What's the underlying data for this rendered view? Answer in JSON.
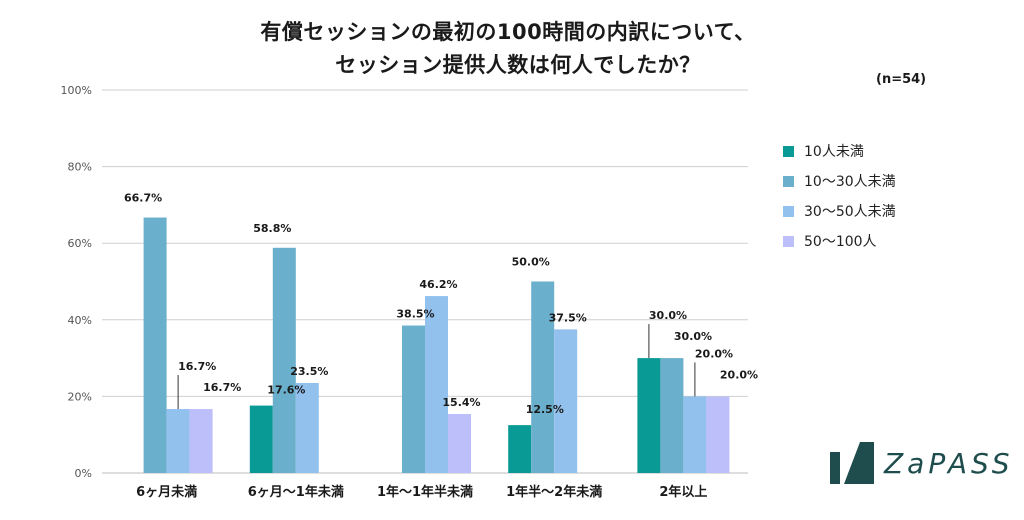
{
  "title_line1": "有償セッションの最初の100時間の内訳について、",
  "title_line2": "セッション提供人数は何人でしたか？",
  "sample_note": "(n=54)",
  "brand": "ZaPASS",
  "colors": {
    "c10": "#0a9a96",
    "c10_30": "#6aafcc",
    "c30_50": "#93c1ee",
    "c50_100": "#bdbffb",
    "grid": "#cfcfcf",
    "logo": "#1f4d4e"
  },
  "chart_data": {
    "type": "bar",
    "title": "有償セッションの最初の100時間の内訳について、セッション提供人数は何人でしたか？",
    "categories": [
      "6ヶ月未満",
      "6ヶ月〜1年未満",
      "1年〜1年半未満",
      "1年半〜2年未満",
      "2年以上"
    ],
    "ylim": [
      0,
      100
    ],
    "yticks": [
      0,
      20,
      40,
      60,
      80,
      100
    ],
    "ytick_labels": [
      "0%",
      "20%",
      "40%",
      "60%",
      "80%",
      "100%"
    ],
    "series": [
      {
        "name": "10人未満",
        "color": "#0a9a96",
        "values": [
          0,
          17.6,
          0,
          12.5,
          30.0
        ],
        "labels": [
          "",
          "17.6%",
          "",
          "12.5%",
          "30.0%"
        ]
      },
      {
        "name": "10〜30人未満",
        "color": "#6aafcc",
        "values": [
          66.7,
          58.8,
          38.5,
          50.0,
          30.0
        ],
        "labels": [
          "66.7%",
          "58.8%",
          "38.5%",
          "50.0%",
          "30.0%"
        ]
      },
      {
        "name": "30〜50人未満",
        "color": "#93c1ee",
        "values": [
          16.7,
          23.5,
          46.2,
          37.5,
          20.0
        ],
        "labels": [
          "16.7%",
          "23.5%",
          "46.2%",
          "37.5%",
          "20.0%"
        ]
      },
      {
        "name": "50〜100人",
        "color": "#bdbffb",
        "values": [
          16.7,
          0,
          15.4,
          0,
          20.0
        ],
        "labels": [
          "16.7%",
          "",
          "15.4%",
          "",
          "20.0%"
        ]
      }
    ],
    "legend": "right",
    "grid": true
  }
}
